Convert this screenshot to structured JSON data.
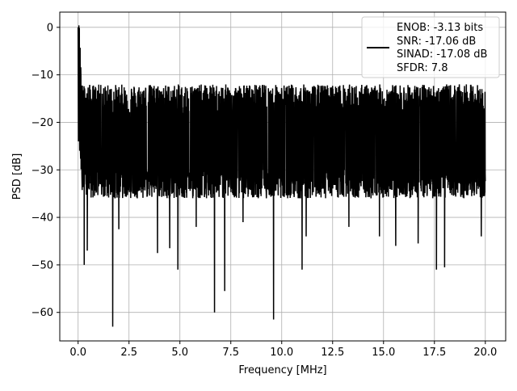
{
  "chart_data": {
    "type": "line",
    "title": "",
    "xlabel": "Frequency [MHz]",
    "ylabel": "PSD [dB]",
    "xlim": [
      -0.9,
      21.0
    ],
    "ylim": [
      -66.0,
      3.2
    ],
    "x_ticks": [
      0.0,
      2.5,
      5.0,
      7.5,
      10.0,
      12.5,
      15.0,
      17.5,
      20.0
    ],
    "x_tick_labels": [
      "0.0",
      "2.5",
      "5.0",
      "7.5",
      "10.0",
      "12.5",
      "15.0",
      "17.5",
      "20.0"
    ],
    "y_ticks": [
      0,
      -10,
      -20,
      -30,
      -40,
      -50,
      -60
    ],
    "y_tick_labels": [
      "0",
      "−10",
      "−20",
      "−30",
      "−40",
      "−50",
      "−60"
    ],
    "grid": true,
    "legend_position": "top-right",
    "series": [
      {
        "color": "#000000",
        "x_range": [
          0.0,
          20.0
        ],
        "noise_floor_db": -23.5,
        "noise_band_db": [
          -34,
          -14
        ],
        "peak": {
          "x": 0.0,
          "y": 0.0
        },
        "notches": [
          {
            "x": 0.3,
            "y": -50.0
          },
          {
            "x": 0.45,
            "y": -47.0
          },
          {
            "x": 1.7,
            "y": -63.0
          },
          {
            "x": 2.0,
            "y": -42.5
          },
          {
            "x": 3.9,
            "y": -47.5
          },
          {
            "x": 4.5,
            "y": -46.5
          },
          {
            "x": 4.9,
            "y": -51.0
          },
          {
            "x": 5.8,
            "y": -42.0
          },
          {
            "x": 6.7,
            "y": -60.0
          },
          {
            "x": 7.2,
            "y": -55.5
          },
          {
            "x": 8.1,
            "y": -41.0
          },
          {
            "x": 9.6,
            "y": -61.5
          },
          {
            "x": 11.0,
            "y": -51.0
          },
          {
            "x": 11.2,
            "y": -44.0
          },
          {
            "x": 13.3,
            "y": -42.0
          },
          {
            "x": 14.8,
            "y": -44.0
          },
          {
            "x": 15.6,
            "y": -46.0
          },
          {
            "x": 16.7,
            "y": -45.5
          },
          {
            "x": 17.6,
            "y": -51.0
          },
          {
            "x": 18.0,
            "y": -50.5
          },
          {
            "x": 19.8,
            "y": -44.0
          }
        ]
      }
    ],
    "legend": {
      "lines": [
        "ENOB: -3.13 bits",
        "SNR: -17.06 dB",
        "SINAD: -17.08 dB",
        "SFDR: 7.8"
      ]
    }
  }
}
